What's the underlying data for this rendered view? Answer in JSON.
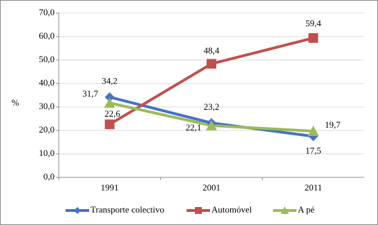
{
  "chart_data": {
    "type": "line",
    "y_label": "%",
    "categories": [
      "1991",
      "2001",
      "2011"
    ],
    "series": [
      {
        "name": "Transporte colectivo",
        "color": "#4472c4",
        "marker": "diamond",
        "values": [
          34.2,
          23.2,
          17.5
        ],
        "value_labels": [
          "34,2",
          "23,2",
          "17,5"
        ]
      },
      {
        "name": "Automóvel",
        "color": "#c0504d",
        "marker": "square",
        "values": [
          22.6,
          48.4,
          59.4
        ],
        "value_labels": [
          "22,6",
          "48,4",
          "59,4"
        ]
      },
      {
        "name": "A pé",
        "color": "#9bbb59",
        "marker": "triangle",
        "values": [
          31.7,
          22.1,
          19.7
        ],
        "value_labels": [
          "31,7",
          "22,1",
          "19,7"
        ]
      }
    ],
    "ylim": [
      0,
      70
    ],
    "yticks": [
      {
        "value": 0,
        "label": "0,0"
      },
      {
        "value": 10,
        "label": "10,0"
      },
      {
        "value": 20,
        "label": "20,0"
      },
      {
        "value": 30,
        "label": "30,0"
      },
      {
        "value": 40,
        "label": "40,0"
      },
      {
        "value": 50,
        "label": "50,0"
      },
      {
        "value": 60,
        "label": "60,0"
      },
      {
        "value": 70,
        "label": "70,0"
      }
    ],
    "grid": true,
    "legend": "bottom"
  }
}
